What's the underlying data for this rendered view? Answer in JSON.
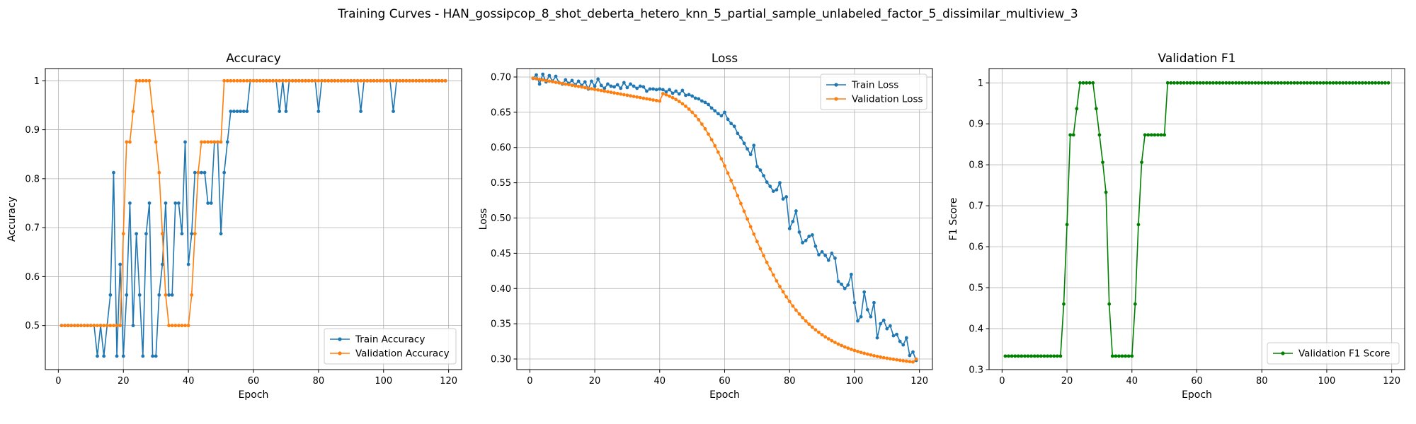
{
  "figure": {
    "suptitle": "Training Curves - HAN_gossipcop_8_shot_deberta_hetero_knn_5_partial_sample_unlabeled_factor_5_dissimilar_multiview_3"
  },
  "chart_data": [
    {
      "type": "line",
      "title": "Accuracy",
      "xlabel": "Epoch",
      "ylabel": "Accuracy",
      "xlim": [
        -4,
        124
      ],
      "ylim": [
        0.41,
        1.025
      ],
      "xticks": [
        0,
        20,
        40,
        60,
        80,
        100,
        120
      ],
      "yticks": [
        0.5,
        0.6,
        0.7,
        0.8,
        0.9,
        1.0
      ],
      "grid": true,
      "legend_position": "lower-right",
      "series": [
        {
          "name": "Train Accuracy",
          "color": "#1f77b4",
          "x_start": 1,
          "values": [
            0.5,
            0.5,
            0.5,
            0.5,
            0.5,
            0.5,
            0.5,
            0.5,
            0.5,
            0.5,
            0.5,
            0.4375,
            0.5,
            0.4375,
            0.5,
            0.5625,
            0.8125,
            0.4375,
            0.625,
            0.4375,
            0.5625,
            0.75,
            0.5,
            0.6875,
            0.5625,
            0.4375,
            0.6875,
            0.75,
            0.4375,
            0.4375,
            0.5625,
            0.625,
            0.75,
            0.5625,
            0.5625,
            0.75,
            0.75,
            0.6875,
            0.875,
            0.625,
            0.6875,
            0.8125,
            0.8125,
            0.8125,
            0.8125,
            0.75,
            0.75,
            0.875,
            0.875,
            0.6875,
            0.8125,
            0.875,
            0.9375,
            0.9375,
            0.9375,
            0.9375,
            0.9375,
            0.9375,
            1.0,
            1.0,
            1.0,
            1.0,
            1.0,
            1.0,
            1.0,
            1.0,
            1.0,
            0.9375,
            1.0,
            0.9375,
            1.0,
            1.0,
            1.0,
            1.0,
            1.0,
            1.0,
            1.0,
            1.0,
            1.0,
            0.9375,
            1.0,
            1.0,
            1.0,
            1.0,
            1.0,
            1.0,
            1.0,
            1.0,
            1.0,
            1.0,
            1.0,
            1.0,
            0.9375,
            1.0,
            1.0,
            1.0,
            1.0,
            1.0,
            1.0,
            1.0,
            1.0,
            1.0,
            0.9375,
            1.0,
            1.0,
            1.0,
            1.0,
            1.0,
            1.0,
            1.0,
            1.0,
            1.0,
            1.0,
            1.0,
            1.0,
            1.0,
            1.0,
            1.0,
            1.0
          ]
        },
        {
          "name": "Validation Accuracy",
          "color": "#ff7f0e",
          "x_start": 1,
          "values": [
            0.5,
            0.5,
            0.5,
            0.5,
            0.5,
            0.5,
            0.5,
            0.5,
            0.5,
            0.5,
            0.5,
            0.5,
            0.5,
            0.5,
            0.5,
            0.5,
            0.5,
            0.5,
            0.5,
            0.6875,
            0.875,
            0.875,
            0.9375,
            1.0,
            1.0,
            1.0,
            1.0,
            1.0,
            0.9375,
            0.875,
            0.8125,
            0.6875,
            0.5625,
            0.5,
            0.5,
            0.5,
            0.5,
            0.5,
            0.5,
            0.5,
            0.5625,
            0.6875,
            0.8125,
            0.875,
            0.875,
            0.875,
            0.875,
            0.875,
            0.875,
            0.875,
            1.0,
            1.0,
            1.0,
            1.0,
            1.0,
            1.0,
            1.0,
            1.0,
            1.0,
            1.0,
            1.0,
            1.0,
            1.0,
            1.0,
            1.0,
            1.0,
            1.0,
            1.0,
            1.0,
            1.0,
            1.0,
            1.0,
            1.0,
            1.0,
            1.0,
            1.0,
            1.0,
            1.0,
            1.0,
            1.0,
            1.0,
            1.0,
            1.0,
            1.0,
            1.0,
            1.0,
            1.0,
            1.0,
            1.0,
            1.0,
            1.0,
            1.0,
            1.0,
            1.0,
            1.0,
            1.0,
            1.0,
            1.0,
            1.0,
            1.0,
            1.0,
            1.0,
            1.0,
            1.0,
            1.0,
            1.0,
            1.0,
            1.0,
            1.0,
            1.0,
            1.0,
            1.0,
            1.0,
            1.0,
            1.0,
            1.0,
            1.0,
            1.0,
            1.0
          ]
        }
      ]
    },
    {
      "type": "line",
      "title": "Loss",
      "xlabel": "Epoch",
      "ylabel": "Loss",
      "xlim": [
        -4,
        124
      ],
      "ylim": [
        0.285,
        0.712
      ],
      "xticks": [
        0,
        20,
        40,
        60,
        80,
        100,
        120
      ],
      "yticks": [
        0.3,
        0.35,
        0.4,
        0.45,
        0.5,
        0.55,
        0.6,
        0.65,
        0.7
      ],
      "ytick_labels": [
        "0.30",
        "0.35",
        "0.40",
        "0.45",
        "0.50",
        "0.55",
        "0.60",
        "0.65",
        "0.70"
      ],
      "grid": true,
      "legend_position": "top-right",
      "series": [
        {
          "name": "Train Loss",
          "color": "#1f77b4",
          "x_start": 1,
          "values": [
            0.698,
            0.703,
            0.69,
            0.704,
            0.693,
            0.702,
            0.694,
            0.701,
            0.692,
            0.69,
            0.696,
            0.691,
            0.695,
            0.689,
            0.694,
            0.688,
            0.693,
            0.683,
            0.694,
            0.687,
            0.697,
            0.688,
            0.684,
            0.69,
            0.687,
            0.686,
            0.689,
            0.684,
            0.692,
            0.685,
            0.69,
            0.687,
            0.684,
            0.687,
            0.686,
            0.68,
            0.683,
            0.683,
            0.682,
            0.683,
            0.682,
            0.679,
            0.682,
            0.677,
            0.68,
            0.676,
            0.681,
            0.674,
            0.675,
            0.673,
            0.67,
            0.669,
            0.666,
            0.664,
            0.661,
            0.656,
            0.652,
            0.648,
            0.645,
            0.65,
            0.64,
            0.634,
            0.63,
            0.62,
            0.614,
            0.606,
            0.598,
            0.59,
            0.603,
            0.573,
            0.568,
            0.56,
            0.551,
            0.545,
            0.538,
            0.54,
            0.55,
            0.527,
            0.53,
            0.485,
            0.495,
            0.51,
            0.48,
            0.465,
            0.468,
            0.474,
            0.476,
            0.46,
            0.448,
            0.452,
            0.447,
            0.44,
            0.45,
            0.443,
            0.41,
            0.406,
            0.4,
            0.405,
            0.42,
            0.38,
            0.354,
            0.36,
            0.395,
            0.37,
            0.36,
            0.38,
            0.33,
            0.35,
            0.355,
            0.343,
            0.347,
            0.333,
            0.335,
            0.325,
            0.32,
            0.33,
            0.305,
            0.31,
            0.298
          ]
        },
        {
          "name": "Validation Loss",
          "color": "#ff7f0e",
          "x_start": 1,
          "values": [
            0.6983,
            0.6975,
            0.6966,
            0.6958,
            0.6949,
            0.6941,
            0.6933,
            0.6924,
            0.6916,
            0.6908,
            0.6899,
            0.6891,
            0.6883,
            0.6874,
            0.6866,
            0.6858,
            0.6849,
            0.6841,
            0.6833,
            0.6824,
            0.6816,
            0.6808,
            0.6799,
            0.6791,
            0.6783,
            0.6774,
            0.6766,
            0.6758,
            0.6749,
            0.6741,
            0.6733,
            0.6724,
            0.6716,
            0.6708,
            0.6699,
            0.6691,
            0.6683,
            0.6674,
            0.6666,
            0.6658,
            0.6764,
            0.6747,
            0.6728,
            0.6706,
            0.6681,
            0.6653,
            0.6621,
            0.6585,
            0.6545,
            0.65,
            0.645,
            0.6394,
            0.6332,
            0.6264,
            0.619,
            0.611,
            0.6025,
            0.5934,
            0.5839,
            0.574,
            0.5637,
            0.5532,
            0.5425,
            0.5316,
            0.5206,
            0.5096,
            0.4986,
            0.4877,
            0.4771,
            0.4666,
            0.4565,
            0.4466,
            0.4371,
            0.4279,
            0.4192,
            0.4108,
            0.4028,
            0.3953,
            0.3882,
            0.3815,
            0.3752,
            0.3693,
            0.3638,
            0.3587,
            0.3539,
            0.3494,
            0.3452,
            0.3414,
            0.3378,
            0.3345,
            0.3314,
            0.3286,
            0.3259,
            0.3235,
            0.3212,
            0.3191,
            0.3172,
            0.3154,
            0.3137,
            0.3121,
            0.3107,
            0.3093,
            0.3081,
            0.3069,
            0.3058,
            0.3047,
            0.3037,
            0.3028,
            0.3019,
            0.3011,
            0.3003,
            0.2996,
            0.2989,
            0.2982,
            0.2975,
            0.2969,
            0.2963,
            0.2958,
            0.2998
          ]
        }
      ]
    },
    {
      "type": "line",
      "title": "Validation F1",
      "xlabel": "Epoch",
      "ylabel": "F1 Score",
      "xlim": [
        -4,
        124
      ],
      "ylim": [
        0.3,
        1.035
      ],
      "xticks": [
        0,
        20,
        40,
        60,
        80,
        100,
        120
      ],
      "yticks": [
        0.3,
        0.4,
        0.5,
        0.6,
        0.7,
        0.8,
        0.9,
        1.0
      ],
      "grid": true,
      "legend_position": "lower-right",
      "series": [
        {
          "name": "Validation F1 Score",
          "color": "#008000",
          "x_start": 1,
          "values": [
            0.333,
            0.333,
            0.333,
            0.333,
            0.333,
            0.333,
            0.333,
            0.333,
            0.333,
            0.333,
            0.333,
            0.333,
            0.333,
            0.333,
            0.333,
            0.333,
            0.333,
            0.333,
            0.46,
            0.654,
            0.873,
            0.873,
            0.937,
            1.0,
            1.0,
            1.0,
            1.0,
            1.0,
            0.937,
            0.873,
            0.806,
            0.733,
            0.46,
            0.333,
            0.333,
            0.333,
            0.333,
            0.333,
            0.333,
            0.333,
            0.46,
            0.654,
            0.806,
            0.873,
            0.873,
            0.873,
            0.873,
            0.873,
            0.873,
            0.873,
            1.0,
            1.0,
            1.0,
            1.0,
            1.0,
            1.0,
            1.0,
            1.0,
            1.0,
            1.0,
            1.0,
            1.0,
            1.0,
            1.0,
            1.0,
            1.0,
            1.0,
            1.0,
            1.0,
            1.0,
            1.0,
            1.0,
            1.0,
            1.0,
            1.0,
            1.0,
            1.0,
            1.0,
            1.0,
            1.0,
            1.0,
            1.0,
            1.0,
            1.0,
            1.0,
            1.0,
            1.0,
            1.0,
            1.0,
            1.0,
            1.0,
            1.0,
            1.0,
            1.0,
            1.0,
            1.0,
            1.0,
            1.0,
            1.0,
            1.0,
            1.0,
            1.0,
            1.0,
            1.0,
            1.0,
            1.0,
            1.0,
            1.0,
            1.0,
            1.0,
            1.0,
            1.0,
            1.0,
            1.0,
            1.0,
            1.0,
            1.0,
            1.0,
            1.0
          ]
        }
      ]
    }
  ]
}
